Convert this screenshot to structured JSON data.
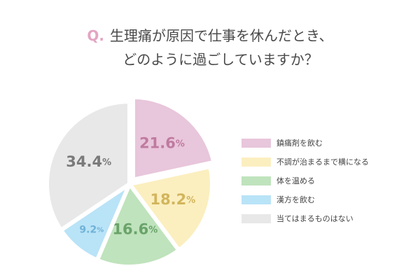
{
  "question": {
    "prefix": "Q.",
    "line1": "生理痛が原因で仕事を休んだとき、",
    "line2": "どのように過ごしていますか？"
  },
  "chart_data": {
    "type": "pie",
    "categories": [
      "鎮痛剤を飲む",
      "不調が治まるまで横になる",
      "体を温める",
      "漢方を飲む",
      "当てはまるものはない"
    ],
    "values": [
      21.6,
      18.2,
      16.6,
      9.2,
      34.4
    ],
    "unit": "%",
    "colors": [
      "#e8c6db",
      "#fbefc0",
      "#bfe3bc",
      "#b9e3f7",
      "#e8e8e8"
    ],
    "label_colors": [
      "#c07aa0",
      "#d2b55c",
      "#6aa36a",
      "#6fb2d8",
      "#7a7a7a"
    ],
    "legend_position": "right"
  }
}
